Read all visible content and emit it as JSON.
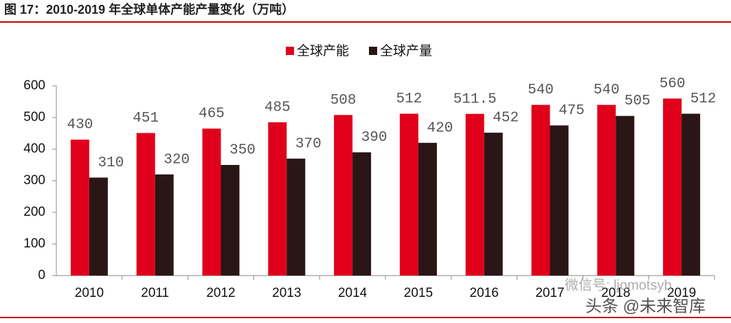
{
  "chart_data": {
    "type": "bar",
    "title": "图 17：2010-2019 年全球单体产能产量变化（万吨）",
    "categories": [
      "2010",
      "2011",
      "2012",
      "2013",
      "2014",
      "2015",
      "2016",
      "2017",
      "2018",
      "2019"
    ],
    "series": [
      {
        "name": "全球产能",
        "color": "#e0001b",
        "values": [
          430,
          451,
          465,
          485,
          508,
          512,
          511.5,
          540,
          540,
          560
        ]
      },
      {
        "name": "全球产量",
        "color": "#2a1616",
        "values": [
          310,
          320,
          350,
          370,
          390,
          420,
          452,
          475,
          505,
          512
        ]
      }
    ],
    "ylim": [
      0,
      600
    ],
    "yticks": [
      0,
      100,
      200,
      300,
      400,
      500,
      600
    ],
    "grid": false,
    "legend": "top",
    "watermarks": [
      "微信号: ljomotsyb",
      "头条 @未来智库"
    ]
  }
}
